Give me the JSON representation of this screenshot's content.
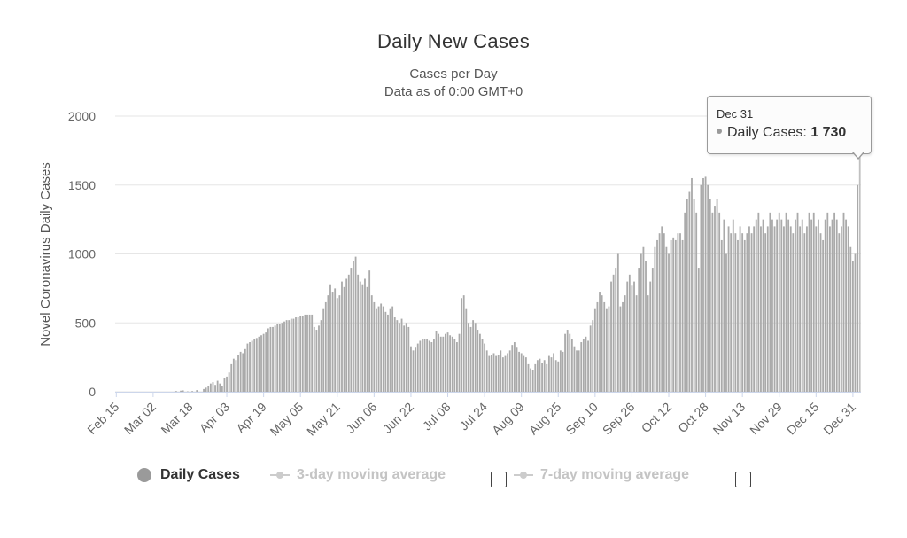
{
  "chart_data": {
    "type": "bar",
    "title": "Daily New Cases",
    "subtitle": [
      "Cases per Day",
      "Data as of 0:00 GMT+0"
    ],
    "ylabel": "Novel Coronavirus Daily Cases",
    "xlabel": "",
    "ylim": [
      0,
      2000
    ],
    "yticks": [
      "0",
      "500",
      "1000",
      "1500",
      "2000"
    ],
    "xticks": [
      "Feb 15",
      "Mar 02",
      "Mar 18",
      "Apr 03",
      "Apr 19",
      "May 05",
      "May 21",
      "Jun 06",
      "Jun 22",
      "Jul 08",
      "Jul 24",
      "Aug 09",
      "Aug 25",
      "Sep 10",
      "Sep 26",
      "Oct 12",
      "Oct 28",
      "Nov 13",
      "Nov 29",
      "Dec 15",
      "Dec 31"
    ],
    "start_date": "Feb 15",
    "grid": true,
    "series": [
      {
        "name": "Daily Cases",
        "values": [
          0,
          0,
          0,
          0,
          0,
          0,
          0,
          0,
          0,
          0,
          0,
          0,
          0,
          0,
          0,
          0,
          0,
          0,
          0,
          0,
          0,
          0,
          0,
          0,
          0,
          0,
          5,
          0,
          8,
          10,
          0,
          3,
          0,
          5,
          0,
          12,
          0,
          0,
          20,
          30,
          40,
          60,
          70,
          50,
          80,
          60,
          40,
          100,
          110,
          140,
          200,
          240,
          230,
          270,
          290,
          280,
          310,
          350,
          360,
          370,
          380,
          390,
          400,
          410,
          420,
          430,
          460,
          470,
          470,
          480,
          490,
          490,
          500,
          510,
          520,
          520,
          530,
          530,
          540,
          540,
          550,
          550,
          560,
          560,
          560,
          560,
          470,
          450,
          480,
          520,
          600,
          650,
          700,
          780,
          720,
          750,
          680,
          700,
          800,
          760,
          820,
          850,
          900,
          950,
          980,
          850,
          800,
          780,
          820,
          760,
          880,
          700,
          650,
          600,
          620,
          640,
          620,
          580,
          560,
          600,
          620,
          540,
          520,
          500,
          530,
          480,
          500,
          470,
          330,
          300,
          320,
          350,
          370,
          380,
          380,
          380,
          370,
          360,
          380,
          440,
          420,
          400,
          400,
          420,
          430,
          410,
          400,
          380,
          360,
          420,
          680,
          700,
          600,
          500,
          470,
          520,
          500,
          450,
          420,
          380,
          350,
          300,
          260,
          270,
          280,
          260,
          270,
          300,
          250,
          260,
          280,
          300,
          340,
          360,
          320,
          290,
          280,
          260,
          250,
          200,
          170,
          160,
          200,
          230,
          240,
          210,
          230,
          200,
          260,
          250,
          280,
          230,
          220,
          300,
          290,
          420,
          450,
          420,
          380,
          330,
          300,
          300,
          360,
          380,
          400,
          370,
          480,
          520,
          600,
          650,
          720,
          700,
          650,
          600,
          620,
          800,
          850,
          900,
          1000,
          620,
          650,
          700,
          800,
          850,
          770,
          800,
          700,
          900,
          1000,
          1050,
          950,
          700,
          800,
          900,
          1050,
          1100,
          1150,
          1200,
          1150,
          1050,
          1000,
          1100,
          1120,
          1100,
          1150,
          1150,
          1100,
          1300,
          1400,
          1450,
          1550,
          1400,
          1300,
          900,
          1500,
          1550,
          1560,
          1500,
          1400,
          1300,
          1350,
          1400,
          1300,
          1100,
          1250,
          1000,
          1200,
          1150,
          1250,
          1150,
          1100,
          1200,
          1150,
          1100,
          1150,
          1200,
          1150,
          1200,
          1250,
          1300,
          1200,
          1250,
          1150,
          1200,
          1300,
          1250,
          1200,
          1250,
          1300,
          1250,
          1200,
          1300,
          1250,
          1200,
          1150,
          1250,
          1300,
          1200,
          1250,
          1150,
          1200,
          1300,
          1250,
          1300,
          1200,
          1250,
          1150,
          1100,
          1250,
          1300,
          1200,
          1250,
          1300,
          1250,
          1150,
          1200,
          1300,
          1250,
          1200,
          1050,
          950,
          1000,
          1500,
          1730
        ]
      }
    ],
    "legend_position": "bottom"
  },
  "legend": {
    "items": [
      {
        "label": "Daily Cases",
        "color": "#9a9a9a",
        "active": true
      },
      {
        "label": "3-day moving average",
        "color": "#cccccc",
        "active": false
      },
      {
        "label": "7-day moving average",
        "color": "#cccccc",
        "active": false
      }
    ]
  },
  "tooltip": {
    "date": "Dec 31",
    "label": "Daily Cases:",
    "value": "1 730"
  },
  "colors": {
    "bar": "#aaaaaa",
    "highlight_bar": "#c0c0c0",
    "grid": "#e6e6e6",
    "axis_text": "#666666"
  }
}
